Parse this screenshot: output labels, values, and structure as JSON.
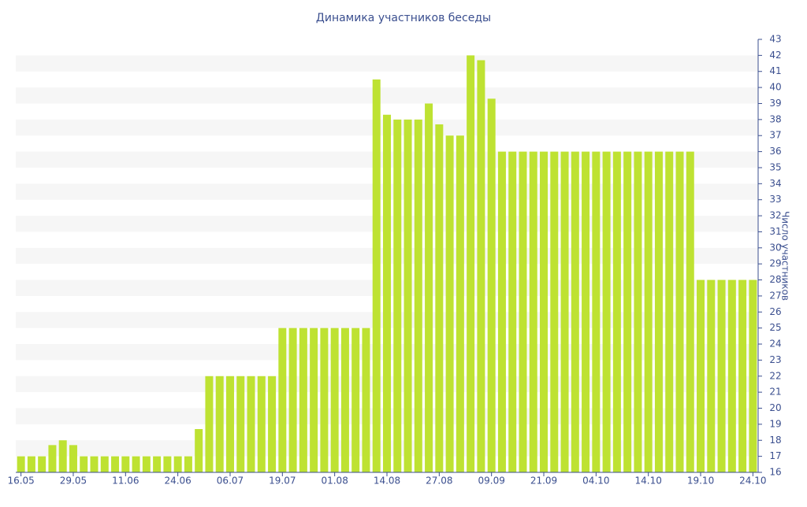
{
  "chart_data": {
    "type": "bar",
    "title": "Динамика участников беседы",
    "y_label": "Число участников",
    "categories": [
      "16.05",
      null,
      null,
      null,
      null,
      "29.05",
      null,
      null,
      null,
      null,
      "11.06",
      null,
      null,
      null,
      null,
      "24.06",
      null,
      null,
      null,
      null,
      "06.07",
      null,
      null,
      null,
      null,
      "19.07",
      null,
      null,
      null,
      null,
      "01.08",
      null,
      null,
      null,
      null,
      "14.08",
      null,
      null,
      null,
      null,
      "27.08",
      null,
      null,
      null,
      null,
      "09.09",
      null,
      null,
      null,
      null,
      "21.09",
      null,
      null,
      null,
      null,
      "04.10",
      null,
      null,
      null,
      null,
      "14.10",
      null,
      null,
      null,
      null,
      "19.10",
      null,
      null,
      null,
      null,
      "24.10"
    ],
    "values": [
      17,
      17,
      17,
      17.7,
      18,
      17.7,
      17,
      17,
      17,
      17,
      17,
      17,
      17,
      17,
      17,
      17,
      17,
      18.7,
      22,
      22,
      22,
      22,
      22,
      22,
      22,
      25,
      25,
      25,
      25,
      25,
      25,
      25,
      25,
      25,
      40.5,
      38.3,
      38,
      38,
      38,
      39,
      37.7,
      37,
      37,
      42,
      41.7,
      39.3,
      36,
      36,
      36,
      36,
      36,
      36,
      36,
      36,
      36,
      36,
      36,
      36,
      36,
      36,
      36,
      36,
      36,
      36,
      36,
      28,
      28,
      28,
      28,
      28,
      28
    ],
    "color": "#bee232",
    "ylim": [
      16,
      43
    ],
    "yticks": [
      16,
      17,
      18,
      19,
      20,
      21,
      22,
      23,
      24,
      25,
      26,
      27,
      28,
      29,
      30,
      31,
      32,
      33,
      34,
      35,
      36,
      37,
      38,
      39,
      40,
      41,
      42,
      43
    ],
    "grid": true,
    "y_axis_side": "right"
  }
}
